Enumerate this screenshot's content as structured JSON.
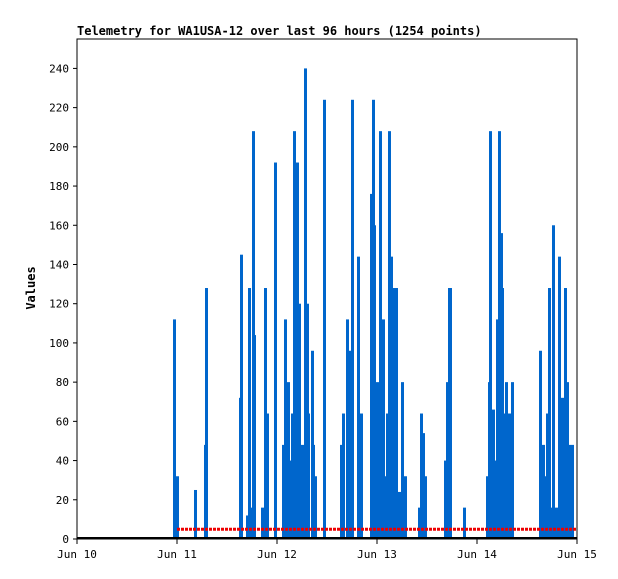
{
  "chart_data": {
    "type": "bar",
    "title": "Telemetry for WA1USA-12 over last 96 hours (1254 points)",
    "xlabel": "",
    "ylabel": "Values",
    "xlim": [
      0,
      5
    ],
    "ylim": [
      0,
      255
    ],
    "x_tick_labels": [
      "Jun 10",
      "Jun 11",
      "Jun 12",
      "Jun 13",
      "Jun 14",
      "Jun 15"
    ],
    "y_ticks": [
      0,
      20,
      40,
      60,
      80,
      100,
      120,
      140,
      160,
      180,
      200,
      220,
      240
    ],
    "grid": false,
    "legend": "none",
    "series": [
      {
        "color": "#0066cc",
        "x": [
          0.97,
          1.0,
          1.18,
          1.28,
          1.29,
          1.63,
          1.64,
          1.7,
          1.72,
          1.75,
          1.76,
          1.77,
          1.85,
          1.88,
          1.9,
          1.98,
          2.06,
          2.08,
          2.09,
          2.11,
          2.12,
          2.15,
          2.17,
          2.18,
          2.2,
          2.22,
          2.25,
          2.27,
          2.28,
          2.3,
          2.31,
          2.35,
          2.36,
          2.38,
          2.47,
          2.64,
          2.66,
          2.7,
          2.72,
          2.75,
          2.81,
          2.84,
          2.94,
          2.96,
          2.97,
          3.0,
          3.03,
          3.06,
          3.08,
          3.1,
          3.12,
          3.14,
          3.16,
          3.19,
          3.22,
          3.25,
          3.28,
          3.42,
          3.44,
          3.46,
          3.48,
          3.68,
          3.7,
          3.72,
          3.73,
          3.87,
          4.1,
          4.12,
          4.13,
          4.16,
          4.18,
          4.2,
          4.22,
          4.24,
          4.25,
          4.27,
          4.29,
          4.32,
          4.35,
          4.63,
          4.66,
          4.68,
          4.7,
          4.72,
          4.74,
          4.76,
          4.79,
          4.82,
          4.85,
          4.87,
          4.88,
          4.9,
          4.92,
          4.95
        ],
        "values": [
          112,
          32,
          25,
          48,
          128,
          72,
          145,
          12,
          128,
          16,
          208,
          104,
          16,
          128,
          64,
          192,
          48,
          112,
          72,
          80,
          40,
          64,
          208,
          16,
          192,
          120,
          48,
          16,
          240,
          120,
          64,
          96,
          48,
          32,
          224,
          48,
          64,
          112,
          96,
          224,
          144,
          64,
          176,
          224,
          160,
          80,
          208,
          112,
          32,
          64,
          208,
          144,
          128,
          128,
          24,
          80,
          32,
          16,
          64,
          54,
          32,
          40,
          80,
          128,
          128,
          16,
          32,
          80,
          208,
          66,
          40,
          112,
          208,
          156,
          128,
          64,
          80,
          64,
          80,
          96,
          48,
          32,
          64,
          128,
          16,
          160,
          16,
          144,
          72,
          64,
          128,
          80,
          48,
          48
        ]
      },
      {
        "color": "#ee0000",
        "x_range": [
          1.0,
          5.0
        ],
        "value": 5
      },
      {
        "color": "#000000",
        "x_range": [
          0.0,
          5.0
        ],
        "value": 0
      }
    ]
  }
}
